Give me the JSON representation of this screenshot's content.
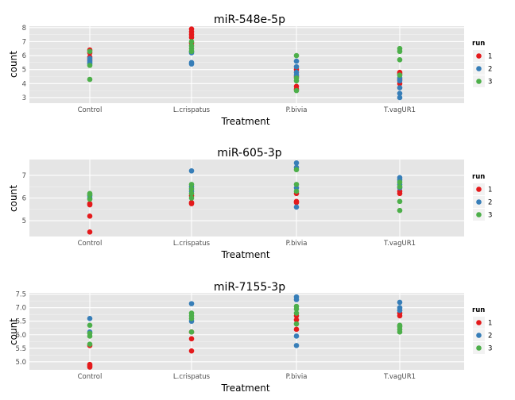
{
  "run_colors": {
    "1": "#e41a1c",
    "2": "#377eb8",
    "3": "#4daf4a"
  },
  "legend": {
    "title": "run",
    "entries": [
      "1",
      "2",
      "3"
    ]
  },
  "chart_data": [
    {
      "type": "scatter",
      "title": "miR-548e-5p",
      "xlabel": "Treatment",
      "ylabel": "count",
      "categories": [
        "Control",
        "L.crispatus",
        "P.bivia",
        "T.vagUR1"
      ],
      "ylim": [
        2.6,
        8.1
      ],
      "yticks": [
        3,
        4,
        5,
        6,
        7,
        8
      ],
      "grid": true,
      "legend_position": "right",
      "series": [
        {
          "name": "1",
          "points": [
            [
              "Control",
              6.4
            ],
            [
              "Control",
              6.2
            ],
            [
              "Control",
              5.9
            ],
            [
              "Control",
              5.7
            ],
            [
              "L.crispatus",
              7.9
            ],
            [
              "L.crispatus",
              7.7
            ],
            [
              "L.crispatus",
              7.5
            ],
            [
              "L.crispatus",
              7.3
            ],
            [
              "L.crispatus",
              6.9
            ],
            [
              "P.bivia",
              5.0
            ],
            [
              "P.bivia",
              4.5
            ],
            [
              "P.bivia",
              3.8
            ],
            [
              "P.bivia",
              3.6
            ],
            [
              "T.vagUR1",
              4.8
            ],
            [
              "T.vagUR1",
              4.7
            ],
            [
              "T.vagUR1",
              4.3
            ],
            [
              "T.vagUR1",
              4.0
            ]
          ]
        },
        {
          "name": "2",
          "points": [
            [
              "Control",
              5.8
            ],
            [
              "Control",
              5.6
            ],
            [
              "Control",
              5.5
            ],
            [
              "Control",
              5.4
            ],
            [
              "L.crispatus",
              6.3
            ],
            [
              "L.crispatus",
              6.2
            ],
            [
              "L.crispatus",
              5.5
            ],
            [
              "L.crispatus",
              5.4
            ],
            [
              "P.bivia",
              5.6
            ],
            [
              "P.bivia",
              5.2
            ],
            [
              "P.bivia",
              4.8
            ],
            [
              "P.bivia",
              4.6
            ],
            [
              "T.vagUR1",
              4.4
            ],
            [
              "T.vagUR1",
              4.2
            ],
            [
              "T.vagUR1",
              3.7
            ],
            [
              "T.vagUR1",
              3.3
            ],
            [
              "T.vagUR1",
              3.0
            ]
          ]
        },
        {
          "name": "3",
          "points": [
            [
              "Control",
              6.3
            ],
            [
              "Control",
              5.3
            ],
            [
              "Control",
              4.3
            ],
            [
              "L.crispatus",
              7.0
            ],
            [
              "L.crispatus",
              6.7
            ],
            [
              "L.crispatus",
              6.5
            ],
            [
              "L.crispatus",
              6.3
            ],
            [
              "P.bivia",
              6.0
            ],
            [
              "P.bivia",
              4.4
            ],
            [
              "P.bivia",
              4.2
            ],
            [
              "P.bivia",
              3.5
            ],
            [
              "T.vagUR1",
              6.5
            ],
            [
              "T.vagUR1",
              6.3
            ],
            [
              "T.vagUR1",
              5.7
            ],
            [
              "T.vagUR1",
              4.6
            ]
          ]
        }
      ]
    },
    {
      "type": "scatter",
      "title": "miR-605-3p",
      "xlabel": "Treatment",
      "ylabel": "count",
      "categories": [
        "Control",
        "L.crispatus",
        "P.bivia",
        "T.vagUR1"
      ],
      "ylim": [
        4.3,
        7.7
      ],
      "yticks": [
        5,
        6,
        7
      ],
      "grid": true,
      "legend_position": "right",
      "series": [
        {
          "name": "1",
          "points": [
            [
              "Control",
              5.75
            ],
            [
              "Control",
              5.7
            ],
            [
              "Control",
              5.2
            ],
            [
              "Control",
              4.5
            ],
            [
              "L.crispatus",
              6.1
            ],
            [
              "L.crispatus",
              5.8
            ],
            [
              "L.crispatus",
              5.75
            ],
            [
              "P.bivia",
              6.2
            ],
            [
              "P.bivia",
              5.85
            ],
            [
              "P.bivia",
              5.8
            ],
            [
              "T.vagUR1",
              6.3
            ],
            [
              "T.vagUR1",
              6.2
            ]
          ]
        },
        {
          "name": "2",
          "points": [
            [
              "Control",
              6.1
            ],
            [
              "Control",
              6.0
            ],
            [
              "L.crispatus",
              7.2
            ],
            [
              "L.crispatus",
              6.5
            ],
            [
              "L.crispatus",
              6.3
            ],
            [
              "P.bivia",
              7.55
            ],
            [
              "P.bivia",
              7.35
            ],
            [
              "P.bivia",
              6.45
            ],
            [
              "P.bivia",
              5.6
            ],
            [
              "T.vagUR1",
              6.9
            ],
            [
              "T.vagUR1",
              6.8
            ],
            [
              "T.vagUR1",
              6.6
            ],
            [
              "T.vagUR1",
              6.45
            ]
          ]
        },
        {
          "name": "3",
          "points": [
            [
              "Control",
              6.2
            ],
            [
              "Control",
              6.15
            ],
            [
              "Control",
              5.95
            ],
            [
              "L.crispatus",
              6.6
            ],
            [
              "L.crispatus",
              6.4
            ],
            [
              "L.crispatus",
              6.2
            ],
            [
              "L.crispatus",
              6.0
            ],
            [
              "P.bivia",
              7.25
            ],
            [
              "P.bivia",
              6.6
            ],
            [
              "P.bivia",
              6.3
            ],
            [
              "T.vagUR1",
              6.7
            ],
            [
              "T.vagUR1",
              6.5
            ],
            [
              "T.vagUR1",
              5.85
            ],
            [
              "T.vagUR1",
              5.45
            ]
          ]
        }
      ]
    },
    {
      "type": "scatter",
      "title": "miR-7155-3p",
      "xlabel": "Treatment",
      "ylabel": "count",
      "categories": [
        "Control",
        "L.crispatus",
        "P.bivia",
        "T.vagUR1"
      ],
      "ylim": [
        4.7,
        7.55
      ],
      "yticks": [
        5.0,
        5.5,
        6.0,
        6.5,
        7.0,
        7.5
      ],
      "ytick_labels": [
        "5.0",
        "5.5",
        "6.0",
        "6.5",
        "7.0",
        "7.5"
      ],
      "grid": true,
      "legend_position": "right",
      "series": [
        {
          "name": "1",
          "points": [
            [
              "Control",
              5.6
            ],
            [
              "Control",
              4.9
            ],
            [
              "Control",
              4.85
            ],
            [
              "Control",
              4.8
            ],
            [
              "L.crispatus",
              6.1
            ],
            [
              "L.crispatus",
              5.85
            ],
            [
              "L.crispatus",
              5.4
            ],
            [
              "P.bivia",
              6.7
            ],
            [
              "P.bivia",
              6.55
            ],
            [
              "P.bivia",
              6.2
            ],
            [
              "T.vagUR1",
              6.8
            ],
            [
              "T.vagUR1",
              6.7
            ]
          ]
        },
        {
          "name": "2",
          "points": [
            [
              "Control",
              6.6
            ],
            [
              "Control",
              6.1
            ],
            [
              "L.crispatus",
              7.15
            ],
            [
              "L.crispatus",
              6.5
            ],
            [
              "P.bivia",
              7.4
            ],
            [
              "P.bivia",
              7.3
            ],
            [
              "P.bivia",
              5.95
            ],
            [
              "P.bivia",
              5.6
            ],
            [
              "T.vagUR1",
              7.2
            ],
            [
              "T.vagUR1",
              7.0
            ],
            [
              "T.vagUR1",
              6.9
            ]
          ]
        },
        {
          "name": "3",
          "points": [
            [
              "Control",
              6.35
            ],
            [
              "Control",
              6.05
            ],
            [
              "Control",
              5.95
            ],
            [
              "Control",
              5.65
            ],
            [
              "L.crispatus",
              6.8
            ],
            [
              "L.crispatus",
              6.7
            ],
            [
              "L.crispatus",
              6.6
            ],
            [
              "L.crispatus",
              6.1
            ],
            [
              "P.bivia",
              7.05
            ],
            [
              "P.bivia",
              6.95
            ],
            [
              "P.bivia",
              6.8
            ],
            [
              "P.bivia",
              6.4
            ],
            [
              "T.vagUR1",
              6.35
            ],
            [
              "T.vagUR1",
              6.3
            ],
            [
              "T.vagUR1",
              6.2
            ],
            [
              "T.vagUR1",
              6.1
            ]
          ]
        }
      ]
    }
  ]
}
